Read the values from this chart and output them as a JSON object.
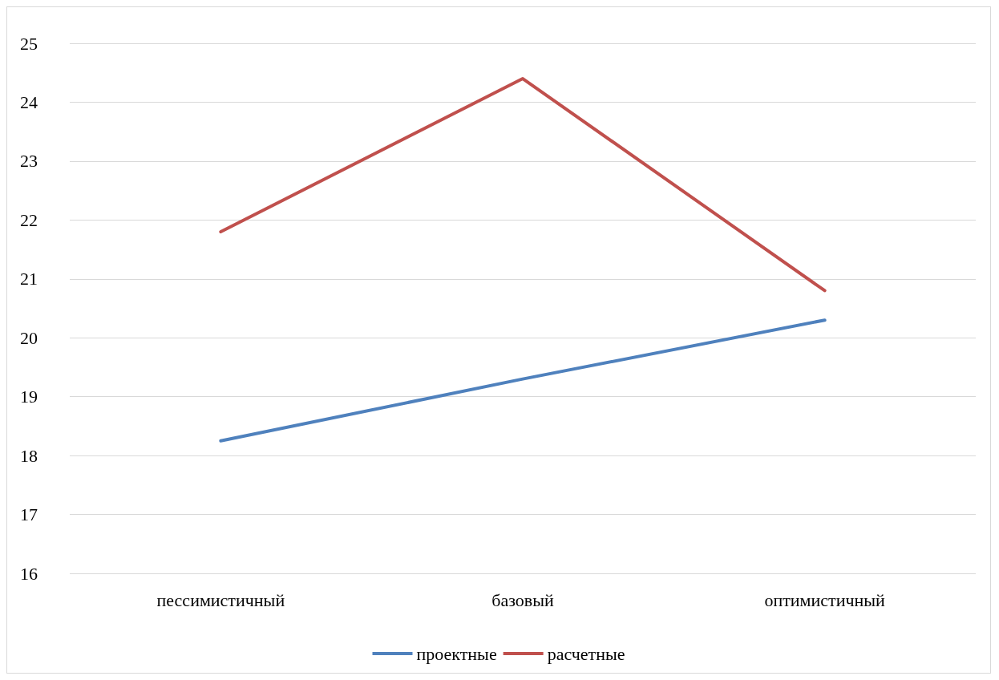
{
  "chart_data": {
    "type": "line",
    "categories": [
      "пессимистичный",
      "базовый",
      "оптимистичный"
    ],
    "series": [
      {
        "name": "проектные",
        "color": "#4f81bd",
        "values": [
          18.25,
          19.3,
          20.3
        ]
      },
      {
        "name": "расчетные",
        "color": "#c0504d",
        "values": [
          21.8,
          24.4,
          20.8
        ]
      }
    ],
    "ylim": [
      16,
      25
    ],
    "yticks": [
      16,
      17,
      18,
      19,
      20,
      21,
      22,
      23,
      24,
      25
    ],
    "grid": "y",
    "legend": "bottom",
    "marker": "none",
    "line_style": "solid"
  }
}
